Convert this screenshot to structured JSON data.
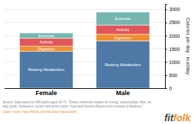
{
  "chart_data": {
    "type": "bar",
    "stacked": true,
    "categories": [
      "Female",
      "Male"
    ],
    "series": [
      {
        "name": "Resting Metabolism",
        "values": [
          1400,
          1800
        ]
      },
      {
        "name": "Digestion",
        "values": [
          200,
          250
        ]
      },
      {
        "name": "Activity",
        "values": [
          300,
          350
        ]
      },
      {
        "name": "Exercise",
        "values": [
          200,
          500
        ]
      }
    ],
    "ylabel": "Calories per day : kcal/day",
    "ylim": [
      0,
      3200
    ],
    "yticks": [
      0,
      500,
      1000,
      1500,
      2000,
      2500,
      3000
    ],
    "grid": true,
    "annotations": [
      "Source: Data based on 645 adults aged 20-70. \"Dietary reference intakes for energy, carbohydrate, fiber, fat,\nfatty acids, cholesterol, protein and amino acids. Food and Nutrition Board of the Institute of Medicine.\"",
      "Learn more: http://fitfolk.com/fat-loss-framework/",
      "fit",
      "folk"
    ]
  }
}
